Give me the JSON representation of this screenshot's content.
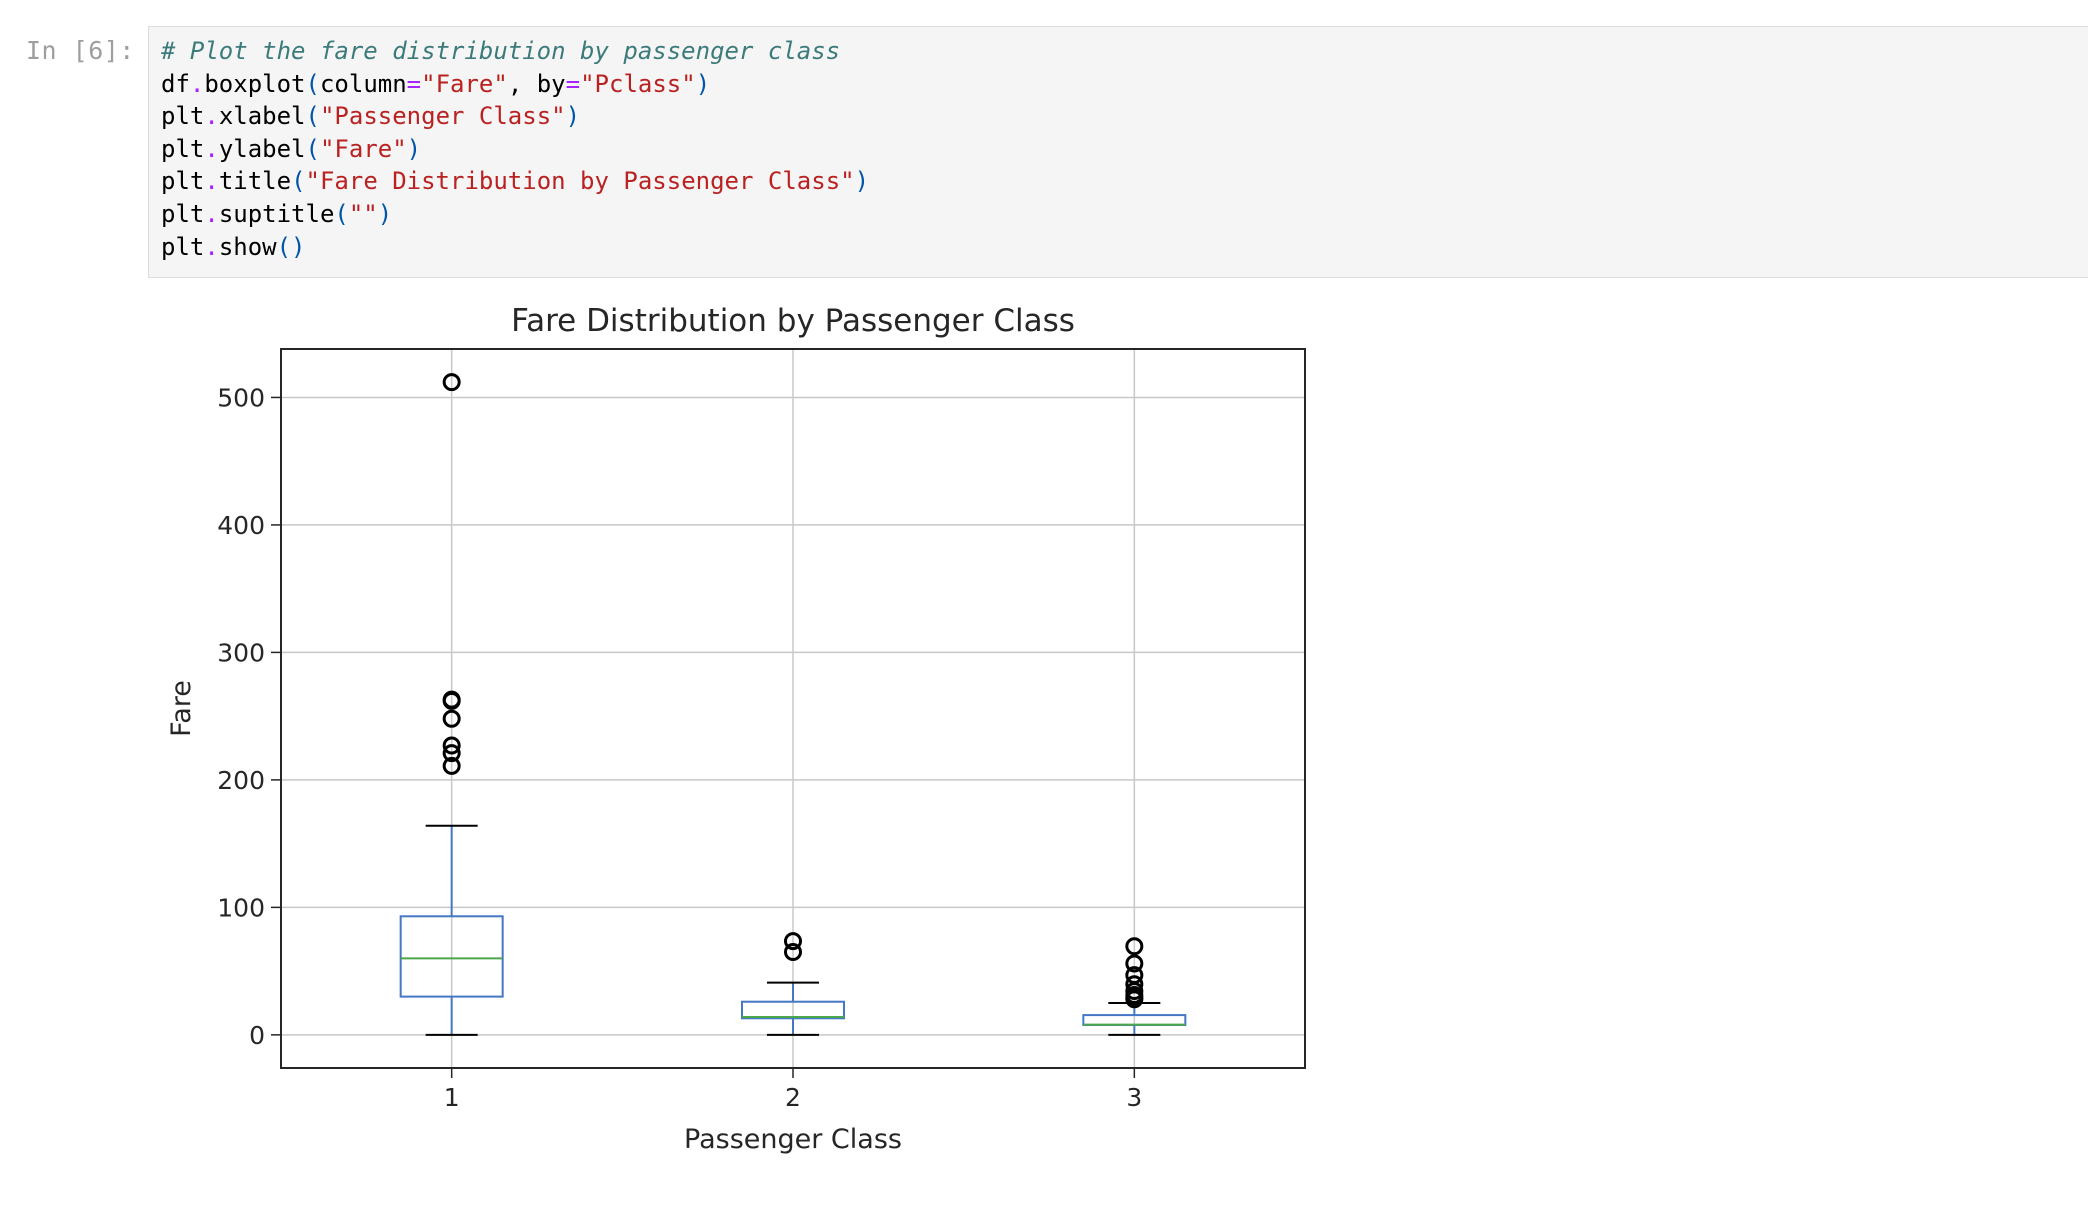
{
  "cell": {
    "prompt": "In [6]:",
    "code_lines": [
      [
        {
          "t": "# Plot the fare distribution by passenger class",
          "c": "comment"
        }
      ],
      [
        {
          "t": "df",
          "c": "kw"
        },
        {
          "t": ".",
          "c": "op"
        },
        {
          "t": "boxplot",
          "c": "kw"
        },
        {
          "t": "(",
          "c": "paren"
        },
        {
          "t": "column",
          "c": "kw"
        },
        {
          "t": "=",
          "c": "op"
        },
        {
          "t": "\"Fare\"",
          "c": "str"
        },
        {
          "t": ", ",
          "c": "kw"
        },
        {
          "t": "by",
          "c": "kw"
        },
        {
          "t": "=",
          "c": "op"
        },
        {
          "t": "\"Pclass\"",
          "c": "str"
        },
        {
          "t": ")",
          "c": "paren"
        }
      ],
      [
        {
          "t": "plt",
          "c": "kw"
        },
        {
          "t": ".",
          "c": "op"
        },
        {
          "t": "xlabel",
          "c": "kw"
        },
        {
          "t": "(",
          "c": "paren"
        },
        {
          "t": "\"Passenger Class\"",
          "c": "str"
        },
        {
          "t": ")",
          "c": "paren"
        }
      ],
      [
        {
          "t": "plt",
          "c": "kw"
        },
        {
          "t": ".",
          "c": "op"
        },
        {
          "t": "ylabel",
          "c": "kw"
        },
        {
          "t": "(",
          "c": "paren"
        },
        {
          "t": "\"Fare\"",
          "c": "str"
        },
        {
          "t": ")",
          "c": "paren"
        }
      ],
      [
        {
          "t": "plt",
          "c": "kw"
        },
        {
          "t": ".",
          "c": "op"
        },
        {
          "t": "title",
          "c": "kw"
        },
        {
          "t": "(",
          "c": "paren"
        },
        {
          "t": "\"Fare Distribution by Passenger Class\"",
          "c": "str"
        },
        {
          "t": ")",
          "c": "paren"
        }
      ],
      [
        {
          "t": "plt",
          "c": "kw"
        },
        {
          "t": ".",
          "c": "op"
        },
        {
          "t": "suptitle",
          "c": "kw"
        },
        {
          "t": "(",
          "c": "paren"
        },
        {
          "t": "\"\"",
          "c": "str"
        },
        {
          "t": ")",
          "c": "paren"
        }
      ],
      [
        {
          "t": "plt",
          "c": "kw"
        },
        {
          "t": ".",
          "c": "op"
        },
        {
          "t": "show",
          "c": "kw"
        },
        {
          "t": "()",
          "c": "paren"
        }
      ]
    ]
  },
  "colors": {
    "box": "#4477c4",
    "median": "#4ca64c",
    "whisker_cap": "#000000",
    "outlier": "#000000",
    "grid": "#c8c8c8",
    "axes": "#262626"
  },
  "chart_data": {
    "type": "boxplot",
    "title": "Fare Distribution by Passenger Class",
    "xlabel": "Passenger Class",
    "ylabel": "Fare",
    "categories": [
      "1",
      "2",
      "3"
    ],
    "ylim": [
      -26,
      538
    ],
    "yticks": [
      0,
      100,
      200,
      300,
      400,
      500
    ],
    "grid": true,
    "boxes": [
      {
        "category": "1",
        "whislo": 0,
        "q1": 30,
        "med": 60,
        "q3": 93,
        "whishi": 164,
        "outliers": [
          512,
          263,
          262,
          248,
          227,
          221,
          211
        ]
      },
      {
        "category": "2",
        "whislo": 0,
        "q1": 13,
        "med": 14,
        "q3": 26,
        "whishi": 41,
        "outliers": [
          73.5,
          65
        ]
      },
      {
        "category": "3",
        "whislo": 0,
        "q1": 7.75,
        "med": 8,
        "q3": 15.5,
        "whishi": 25,
        "outliers": [
          69.5,
          56,
          46.9,
          39.7,
          34.4,
          31.3,
          29.1,
          27.9
        ]
      }
    ]
  }
}
